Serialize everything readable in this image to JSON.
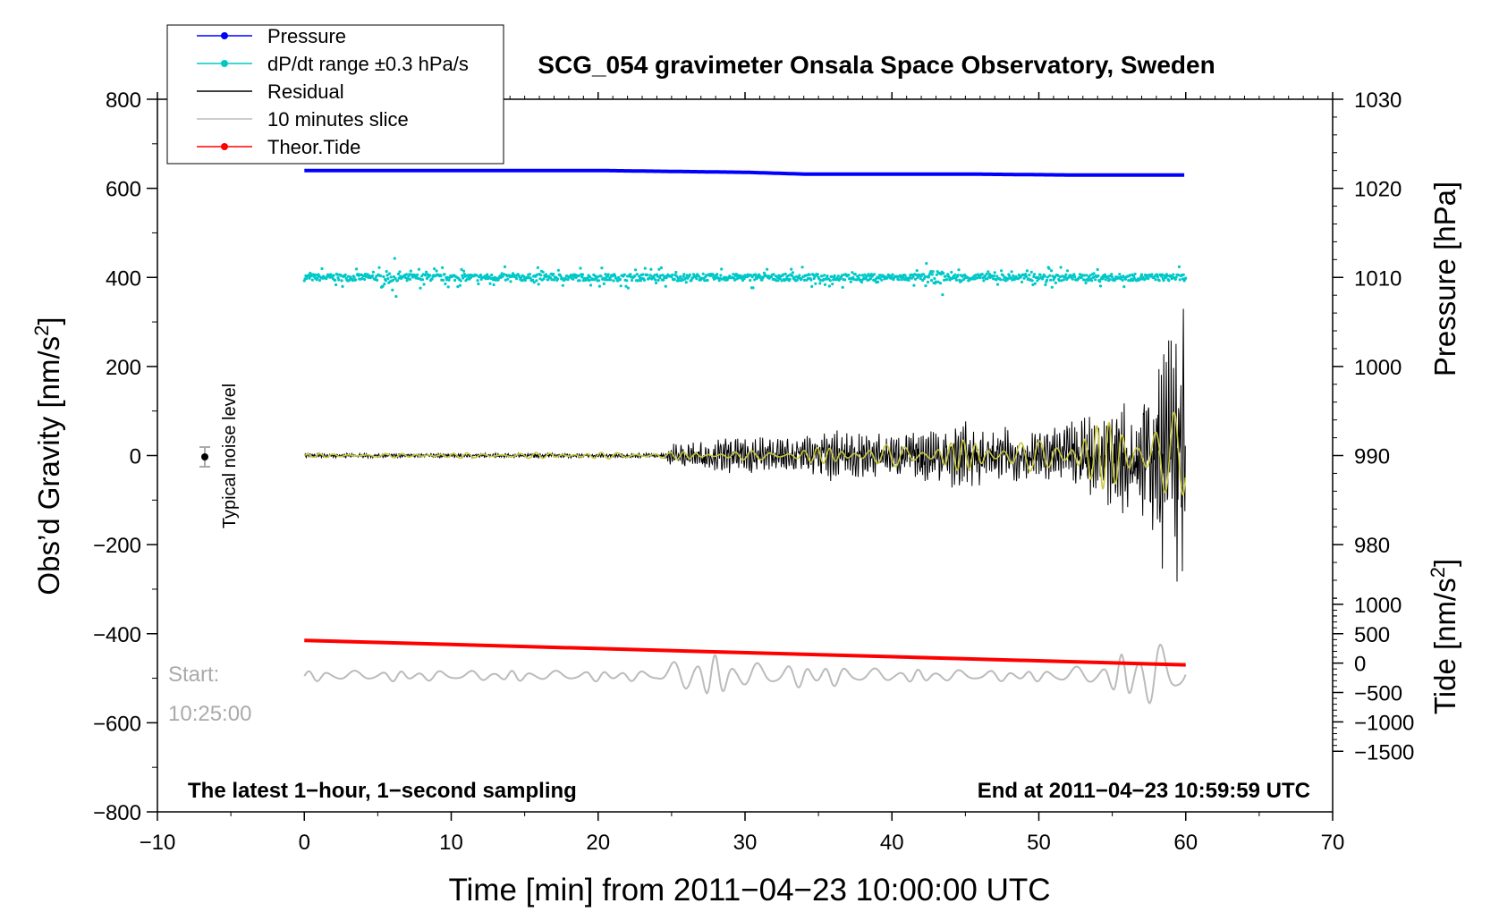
{
  "chart_data": {
    "type": "line",
    "title": "SCG_054 gravimeter Onsala Space Observatory, Sweden",
    "xlabel": "Time [min] from 2011−04−23 10:00:00 UTC",
    "ylabel_main": "Obs’d Gravity [nm/s",
    "ylabel_pressure": "Pressure [hPa]",
    "ylabel_tide": "Tide [nm/s",
    "ylabel_sup": "2",
    "ylabel_close": "]",
    "xlim": [
      -10,
      70
    ],
    "ylim": [
      -800,
      800
    ],
    "x_ticks": [
      "−10",
      "0",
      "10",
      "20",
      "30",
      "40",
      "50",
      "60",
      "70"
    ],
    "y_ticks": [
      "800",
      "600",
      "400",
      "200",
      "0",
      "−200",
      "−400",
      "−600",
      "−800"
    ],
    "pressure_axis": {
      "ticks": [
        "1030",
        "1020",
        "1010",
        "1000",
        "990",
        "980"
      ],
      "range": [
        970,
        1030
      ]
    },
    "tide_axis": {
      "ticks": [
        "1000",
        "500",
        "0",
        "−500",
        "−1000",
        "−1500"
      ],
      "range": [
        -1500,
        1500
      ]
    },
    "legend": {
      "position": "top-left",
      "entries": [
        {
          "label": "Pressure",
          "color": "#0000ff",
          "marker": true
        },
        {
          "label": "dP/dt range ±0.3 hPa/s",
          "color": "#00c8c8",
          "marker": true
        },
        {
          "label": "Residual",
          "color": "#000000",
          "marker": false
        },
        {
          "label": "10 minutes slice",
          "color": "#bbbbbb",
          "marker": false
        },
        {
          "label": "Theor.Tide",
          "color": "#ff0000",
          "marker": true
        }
      ]
    },
    "series": [
      {
        "name": "Pressure",
        "axis": "pressure",
        "color": "#0000ff",
        "x": [
          0,
          20,
          30,
          34,
          45,
          52,
          60
        ],
        "y": [
          1022.0,
          1022.0,
          1021.8,
          1021.6,
          1021.6,
          1021.5,
          1021.5
        ]
      },
      {
        "name": "dP/dt range ±0.3 hPa/s",
        "axis": "main",
        "color": "#00c8c8",
        "center": 400,
        "spread": 15
      },
      {
        "name": "Residual",
        "axis": "main",
        "color": "#000000",
        "x": [
          0,
          24.5,
          25,
          30,
          34,
          35,
          40,
          42,
          45,
          50,
          55,
          57,
          58.5,
          60
        ],
        "amp": [
          5,
          5,
          25,
          40,
          40,
          55,
          45,
          60,
          70,
          50,
          110,
          140,
          240,
          330
        ]
      },
      {
        "name": "Residual (filtered)",
        "axis": "main",
        "color": "#c8c83c",
        "x": [
          0,
          24.5,
          30,
          40,
          45,
          50,
          55,
          60
        ],
        "amp": [
          4,
          8,
          10,
          25,
          35,
          35,
          80,
          100
        ]
      },
      {
        "name": "10 minutes slice",
        "axis": "main",
        "color": "#bbbbbb",
        "base": -495,
        "x": [
          0,
          24,
          25,
          27,
          30,
          35,
          40,
          50,
          55,
          56,
          58,
          60
        ],
        "amp": [
          12,
          12,
          30,
          55,
          30,
          25,
          15,
          12,
          30,
          65,
          80,
          40
        ]
      },
      {
        "name": "Theor.Tide",
        "axis": "main",
        "color": "#ff0000",
        "x": [
          0,
          60
        ],
        "y": [
          -415,
          -470
        ]
      }
    ],
    "noise_marker": {
      "label": "Typical noise level",
      "x": -7,
      "y": 0,
      "err": 20
    },
    "annotations": {
      "start_label": "Start:",
      "start_time": "10:25:00",
      "bottom_left": "The latest 1−hour, 1−second sampling",
      "bottom_right": "End at 2011−04−23 10:59:59 UTC"
    }
  }
}
